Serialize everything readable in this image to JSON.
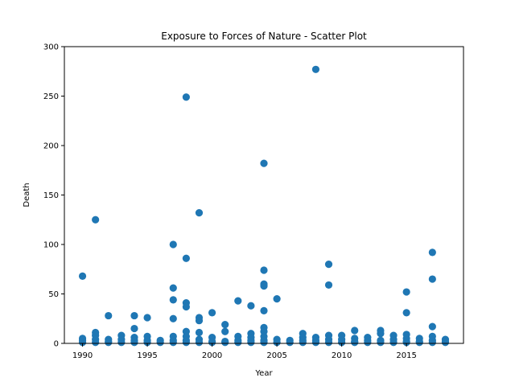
{
  "chart_data": {
    "type": "scatter",
    "title": "Exposure to Forces of Nature - Scatter Plot",
    "xlabel": "Year",
    "ylabel": "Death",
    "xlim": [
      1988.6,
      2019.4
    ],
    "ylim": [
      0,
      300
    ],
    "xticks": [
      1990,
      1995,
      2000,
      2005,
      2010,
      2015
    ],
    "yticks": [
      0,
      50,
      100,
      150,
      200,
      250,
      300
    ],
    "grid": false,
    "marker_color": "#1f77b4",
    "points": [
      [
        1990,
        68
      ],
      [
        1990,
        5
      ],
      [
        1990,
        3
      ],
      [
        1990,
        1
      ],
      [
        1991,
        125
      ],
      [
        1991,
        11
      ],
      [
        1991,
        8
      ],
      [
        1991,
        4
      ],
      [
        1991,
        1
      ],
      [
        1992,
        28
      ],
      [
        1992,
        4
      ],
      [
        1992,
        2
      ],
      [
        1992,
        1
      ],
      [
        1993,
        8
      ],
      [
        1993,
        4
      ],
      [
        1993,
        1
      ],
      [
        1994,
        28
      ],
      [
        1994,
        15
      ],
      [
        1994,
        6
      ],
      [
        1994,
        3
      ],
      [
        1994,
        1
      ],
      [
        1995,
        26
      ],
      [
        1995,
        7
      ],
      [
        1995,
        3
      ],
      [
        1995,
        1
      ],
      [
        1996,
        3
      ],
      [
        1996,
        1
      ],
      [
        1997,
        100
      ],
      [
        1997,
        56
      ],
      [
        1997,
        44
      ],
      [
        1997,
        25
      ],
      [
        1997,
        7
      ],
      [
        1997,
        3
      ],
      [
        1997,
        1
      ],
      [
        1998,
        249
      ],
      [
        1998,
        86
      ],
      [
        1998,
        41
      ],
      [
        1998,
        37
      ],
      [
        1998,
        12
      ],
      [
        1998,
        7
      ],
      [
        1998,
        3
      ],
      [
        1998,
        1
      ],
      [
        1999,
        132
      ],
      [
        1999,
        26
      ],
      [
        1999,
        23
      ],
      [
        1999,
        11
      ],
      [
        1999,
        4
      ],
      [
        1999,
        1
      ],
      [
        2000,
        31
      ],
      [
        2000,
        6
      ],
      [
        2000,
        2
      ],
      [
        2000,
        1
      ],
      [
        2001,
        19
      ],
      [
        2001,
        12
      ],
      [
        2001,
        2
      ],
      [
        2001,
        1
      ],
      [
        2002,
        43
      ],
      [
        2002,
        7
      ],
      [
        2002,
        3
      ],
      [
        2002,
        1
      ],
      [
        2003,
        38
      ],
      [
        2003,
        10
      ],
      [
        2003,
        6
      ],
      [
        2003,
        3
      ],
      [
        2003,
        1
      ],
      [
        2004,
        182
      ],
      [
        2004,
        74
      ],
      [
        2004,
        60
      ],
      [
        2004,
        58
      ],
      [
        2004,
        33
      ],
      [
        2004,
        16
      ],
      [
        2004,
        12
      ],
      [
        2004,
        7
      ],
      [
        2004,
        3
      ],
      [
        2004,
        1
      ],
      [
        2005,
        45
      ],
      [
        2005,
        4
      ],
      [
        2005,
        1
      ],
      [
        2006,
        3
      ],
      [
        2006,
        1
      ],
      [
        2007,
        10
      ],
      [
        2007,
        6
      ],
      [
        2007,
        3
      ],
      [
        2007,
        1
      ],
      [
        2008,
        277
      ],
      [
        2008,
        6
      ],
      [
        2008,
        3
      ],
      [
        2008,
        1
      ],
      [
        2009,
        80
      ],
      [
        2009,
        59
      ],
      [
        2009,
        8
      ],
      [
        2009,
        4
      ],
      [
        2009,
        1
      ],
      [
        2010,
        8
      ],
      [
        2010,
        4
      ],
      [
        2010,
        1
      ],
      [
        2011,
        13
      ],
      [
        2011,
        5
      ],
      [
        2011,
        2
      ],
      [
        2011,
        1
      ],
      [
        2012,
        6
      ],
      [
        2012,
        3
      ],
      [
        2012,
        1
      ],
      [
        2013,
        13
      ],
      [
        2013,
        10
      ],
      [
        2013,
        3
      ],
      [
        2013,
        1
      ],
      [
        2014,
        8
      ],
      [
        2014,
        4
      ],
      [
        2014,
        1
      ],
      [
        2015,
        52
      ],
      [
        2015,
        31
      ],
      [
        2015,
        9
      ],
      [
        2015,
        5
      ],
      [
        2015,
        2
      ],
      [
        2015,
        1
      ],
      [
        2016,
        5
      ],
      [
        2016,
        2
      ],
      [
        2016,
        1
      ],
      [
        2017,
        92
      ],
      [
        2017,
        65
      ],
      [
        2017,
        17
      ],
      [
        2017,
        7
      ],
      [
        2017,
        3
      ],
      [
        2017,
        1
      ],
      [
        2018,
        4
      ],
      [
        2018,
        2
      ],
      [
        2018,
        1
      ]
    ]
  }
}
